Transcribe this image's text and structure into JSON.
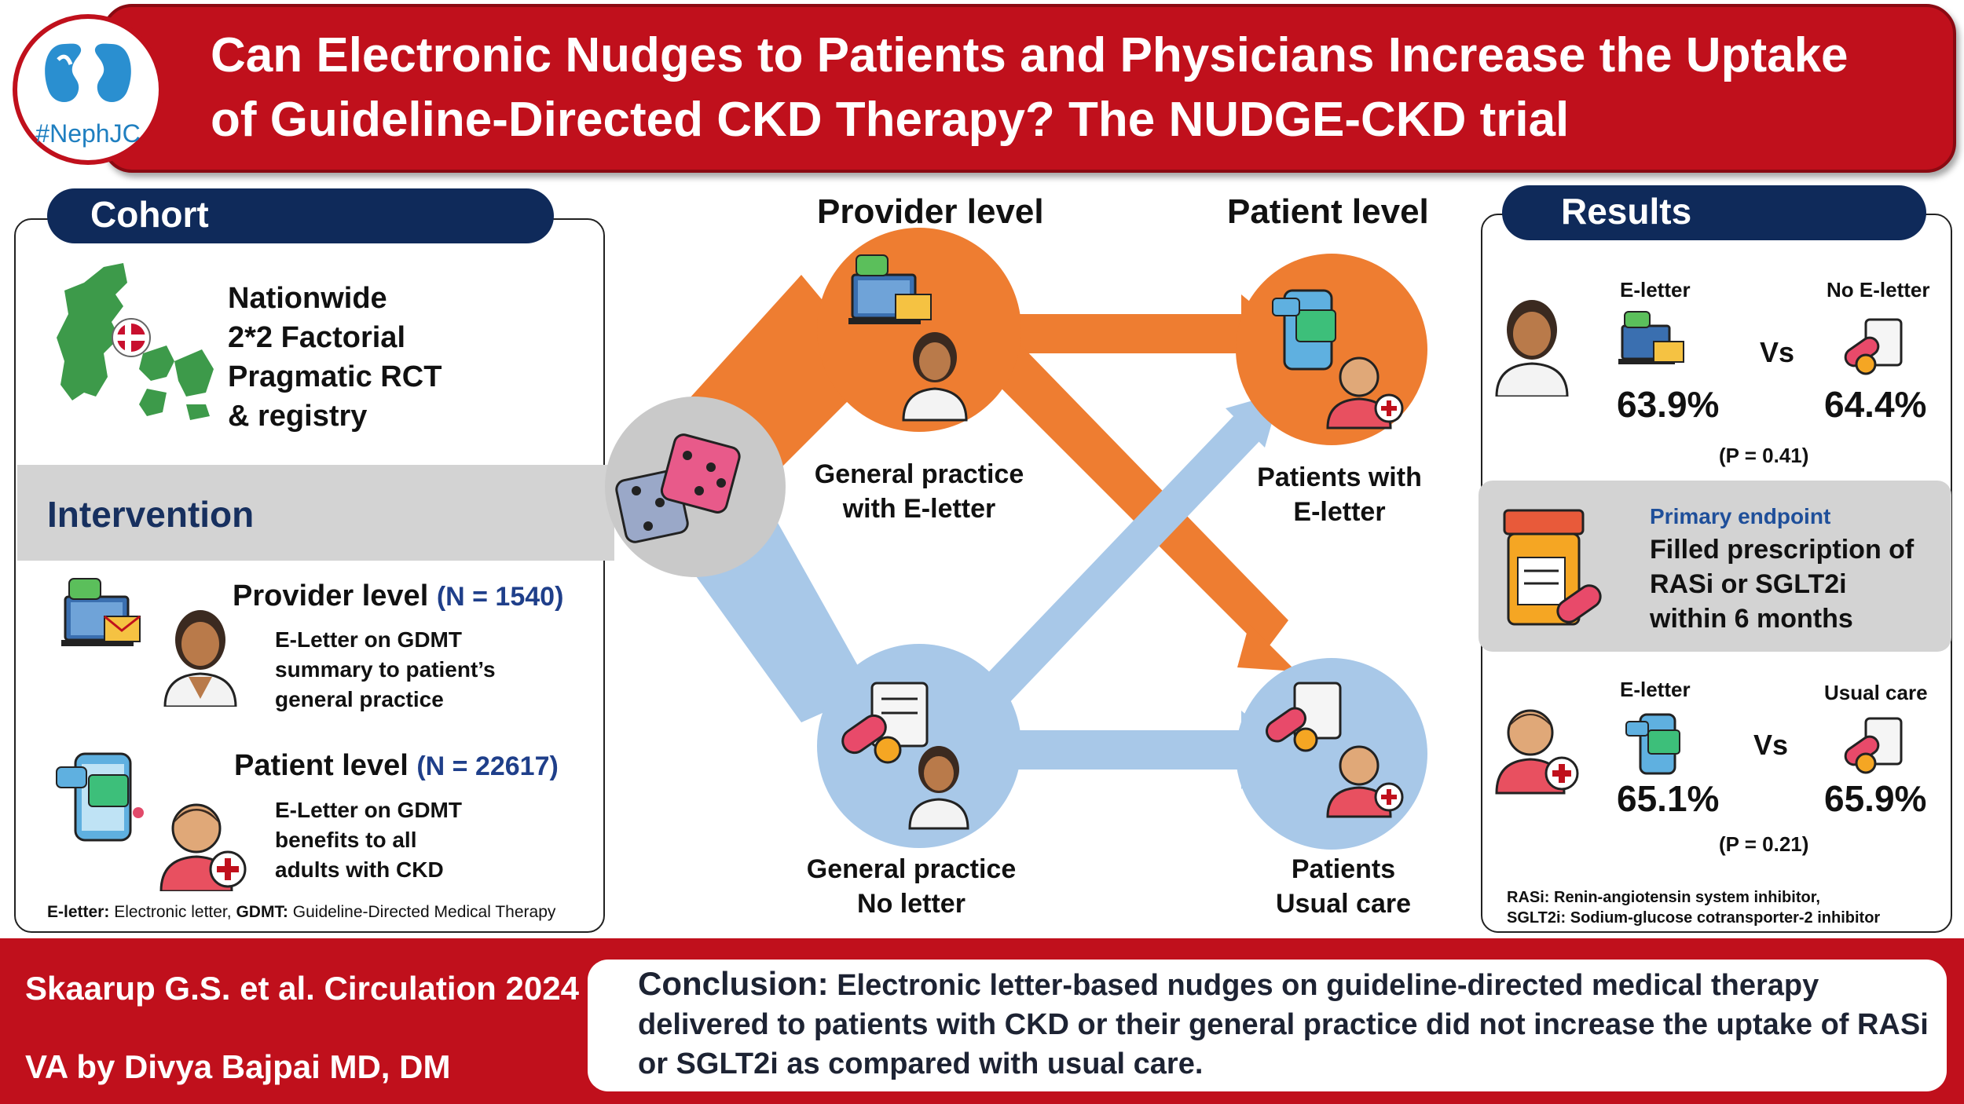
{
  "header": {
    "title_line1": "Can Electronic Nudges to Patients and Physicians Increase the Uptake",
    "title_line2": "of Guideline-Directed CKD Therapy? The NUDGE-CKD trial",
    "logo_text": "#NephJC"
  },
  "cohort": {
    "heading": "Cohort",
    "lines": [
      "Nationwide",
      "2*2 Factorial",
      "Pragmatic RCT",
      "& registry"
    ]
  },
  "intervention": {
    "heading": "Intervention",
    "provider": {
      "title": "Provider level",
      "n": "(N = 1540)",
      "lines": [
        "E-Letter on GDMT",
        "summary to patient’s",
        "general practice"
      ]
    },
    "patient": {
      "title": "Patient level",
      "n": "(N = 22617)",
      "lines": [
        "E-Letter on GDMT",
        "benefits to all",
        "adults with CKD"
      ]
    },
    "footnote_bold1": "E-letter:",
    "footnote_text1": " Electronic letter, ",
    "footnote_bold2": "GDMT:",
    "footnote_text2": " Guideline-Directed Medical Therapy"
  },
  "flow": {
    "provider_heading": "Provider level",
    "patient_heading": "Patient level",
    "gp_eletter": [
      "General practice",
      "with E-letter"
    ],
    "gp_noletter": [
      "General practice",
      "No letter"
    ],
    "pt_eletter": [
      "Patients with",
      "E-letter"
    ],
    "pt_usual": [
      "Patients",
      "Usual care"
    ],
    "colors": {
      "orange": "#ee7d31",
      "light_blue": "#a8c8e8",
      "gray_circle": "#c9c9c9"
    }
  },
  "results": {
    "heading": "Results",
    "top": {
      "left_label": "E-letter",
      "right_label": "No E-letter",
      "vs": "Vs",
      "left_pct": "63.9%",
      "right_pct": "64.4%",
      "p": "(P = 0.41)"
    },
    "endpoint": {
      "label": "Primary endpoint",
      "lines": [
        "Filled prescription of",
        "RASi or SGLT2i",
        "within 6 months"
      ]
    },
    "bottom": {
      "left_label": "E-letter",
      "right_label": "Usual care",
      "vs": "Vs",
      "left_pct": "65.1%",
      "right_pct": "65.9%",
      "p": "(P = 0.21)"
    },
    "abbrev1": "RASi: Renin-angiotensin system inhibitor,",
    "abbrev2": "SGLT2i: Sodium-glucose cotransporter-2 inhibitor"
  },
  "footer": {
    "citation": "Skaarup G.S. et al. Circulation 2024",
    "va": "VA by Divya Bajpai MD, DM",
    "conclusion_label": "Conclusion:",
    "conclusion_text": " Electronic letter-based nudges on guideline-directed medical therapy delivered to patients with CKD or their general practice did not increase the uptake of RASi or SGLT2i as compared with usual care."
  }
}
